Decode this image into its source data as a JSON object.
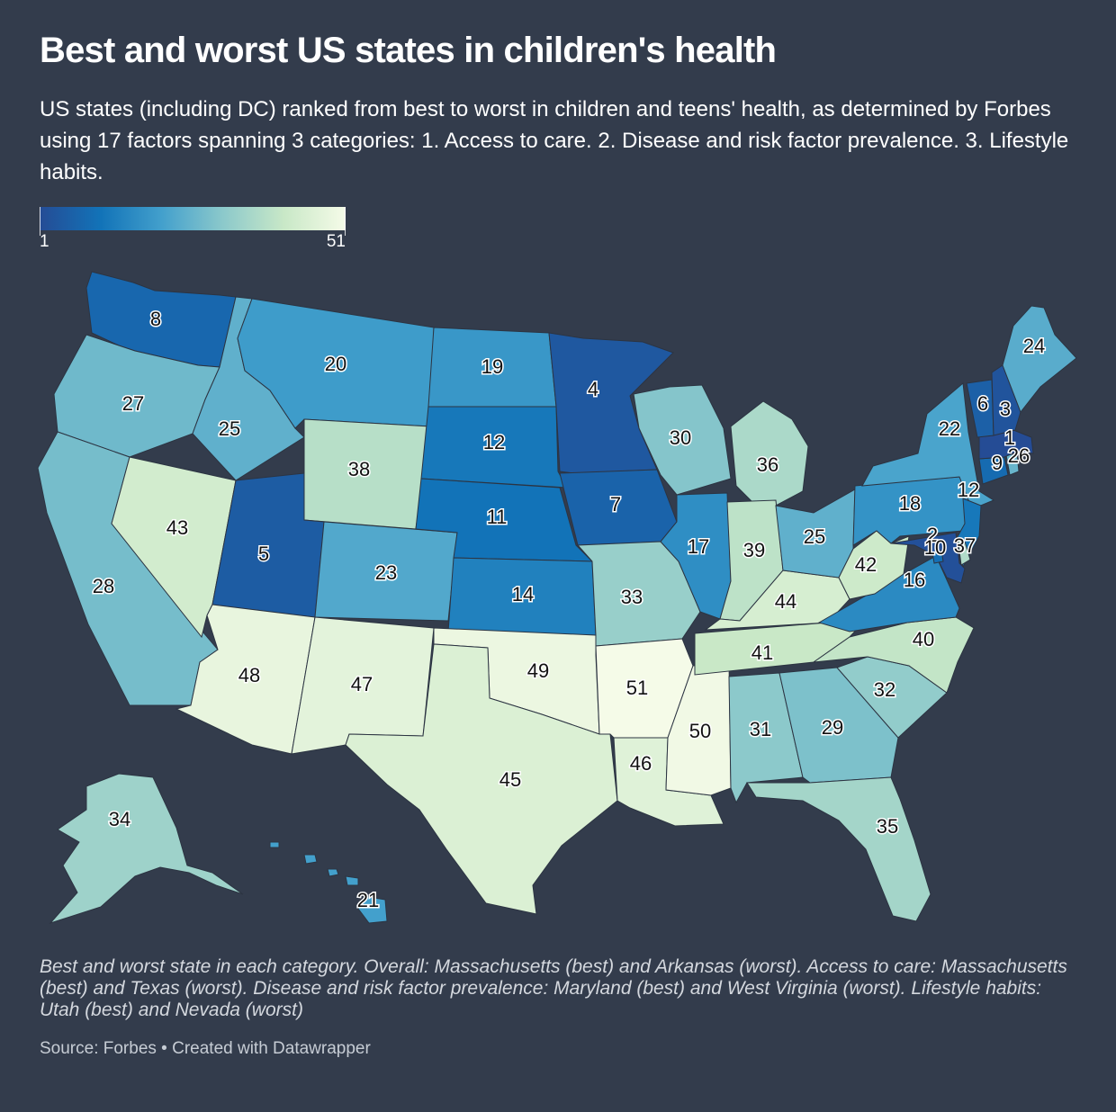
{
  "title": "Best and worst US states in children's health",
  "subtitle": "US states (including DC) ranked from best to worst in children and teens' health, as determined by Forbes using 17 factors spanning 3 categories: 1. Access to care. 2. Disease and risk factor prevalence. 3. Lifestyle habits.",
  "legend": {
    "min_label": "1",
    "max_label": "51",
    "min_value": 1,
    "max_value": 51,
    "colors": [
      "#254c95",
      "#1273b8",
      "#43a0cc",
      "#8cc9cb",
      "#c9e8c7",
      "#f5fbe8"
    ]
  },
  "map": {
    "states": [
      {
        "abbr": "WA",
        "name": "Washington",
        "rank": 8
      },
      {
        "abbr": "OR",
        "name": "Oregon",
        "rank": 27
      },
      {
        "abbr": "CA",
        "name": "California",
        "rank": 28
      },
      {
        "abbr": "NV",
        "name": "Nevada",
        "rank": 43
      },
      {
        "abbr": "ID",
        "name": "Idaho",
        "rank": 25
      },
      {
        "abbr": "MT",
        "name": "Montana",
        "rank": 20
      },
      {
        "abbr": "WY",
        "name": "Wyoming",
        "rank": 38
      },
      {
        "abbr": "UT",
        "name": "Utah",
        "rank": 5
      },
      {
        "abbr": "AZ",
        "name": "Arizona",
        "rank": 48
      },
      {
        "abbr": "CO",
        "name": "Colorado",
        "rank": 23
      },
      {
        "abbr": "NM",
        "name": "New Mexico",
        "rank": 47
      },
      {
        "abbr": "ND",
        "name": "North Dakota",
        "rank": 19
      },
      {
        "abbr": "SD",
        "name": "South Dakota",
        "rank": 12
      },
      {
        "abbr": "NE",
        "name": "Nebraska",
        "rank": 11
      },
      {
        "abbr": "KS",
        "name": "Kansas",
        "rank": 14
      },
      {
        "abbr": "OK",
        "name": "Oklahoma",
        "rank": 49
      },
      {
        "abbr": "TX",
        "name": "Texas",
        "rank": 45
      },
      {
        "abbr": "MN",
        "name": "Minnesota",
        "rank": 4
      },
      {
        "abbr": "IA",
        "name": "Iowa",
        "rank": 7
      },
      {
        "abbr": "MO",
        "name": "Missouri",
        "rank": 33
      },
      {
        "abbr": "AR",
        "name": "Arkansas",
        "rank": 51
      },
      {
        "abbr": "LA",
        "name": "Louisiana",
        "rank": 46
      },
      {
        "abbr": "WI",
        "name": "Wisconsin",
        "rank": 30
      },
      {
        "abbr": "IL",
        "name": "Illinois",
        "rank": 17
      },
      {
        "abbr": "MS",
        "name": "Mississippi",
        "rank": 50
      },
      {
        "abbr": "MI",
        "name": "Michigan",
        "rank": 36
      },
      {
        "abbr": "IN",
        "name": "Indiana",
        "rank": 39
      },
      {
        "abbr": "KY",
        "name": "Kentucky",
        "rank": 44
      },
      {
        "abbr": "TN",
        "name": "Tennessee",
        "rank": 41
      },
      {
        "abbr": "AL",
        "name": "Alabama",
        "rank": 31
      },
      {
        "abbr": "OH",
        "name": "Ohio",
        "rank": 25
      },
      {
        "abbr": "GA",
        "name": "Georgia",
        "rank": 29
      },
      {
        "abbr": "FL",
        "name": "Florida",
        "rank": 35
      },
      {
        "abbr": "SC",
        "name": "South Carolina",
        "rank": 32
      },
      {
        "abbr": "NC",
        "name": "North Carolina",
        "rank": 40
      },
      {
        "abbr": "VA",
        "name": "Virginia",
        "rank": 16
      },
      {
        "abbr": "WV",
        "name": "West Virginia",
        "rank": 42
      },
      {
        "abbr": "PA",
        "name": "Pennsylvania",
        "rank": 18
      },
      {
        "abbr": "NY",
        "name": "New York",
        "rank": 22
      },
      {
        "abbr": "NJ",
        "name": "New Jersey",
        "rank": 12
      },
      {
        "abbr": "DE",
        "name": "Delaware",
        "rank": 37
      },
      {
        "abbr": "MD",
        "name": "Maryland",
        "rank": 2
      },
      {
        "abbr": "DC",
        "name": "District of Columbia",
        "rank": 10
      },
      {
        "abbr": "CT",
        "name": "Connecticut",
        "rank": 9
      },
      {
        "abbr": "RI",
        "name": "Rhode Island",
        "rank": 26
      },
      {
        "abbr": "MA",
        "name": "Massachusetts",
        "rank": 1
      },
      {
        "abbr": "VT",
        "name": "Vermont",
        "rank": 6
      },
      {
        "abbr": "NH",
        "name": "New Hampshire",
        "rank": 3
      },
      {
        "abbr": "ME",
        "name": "Maine",
        "rank": 24
      },
      {
        "abbr": "AK",
        "name": "Alaska",
        "rank": 34
      },
      {
        "abbr": "HI",
        "name": "Hawaii",
        "rank": 21
      }
    ]
  },
  "notes": "Best and worst state in each category. Overall: Massachusetts (best) and Arkansas (worst). Access to care: Massachusetts (best) and Texas (worst). Disease and risk factor prevalence: Maryland (best) and West Virginia (worst). Lifestyle habits: Utah (best) and Nevada (worst)",
  "source": "Source: Forbes • Created with Datawrapper"
}
